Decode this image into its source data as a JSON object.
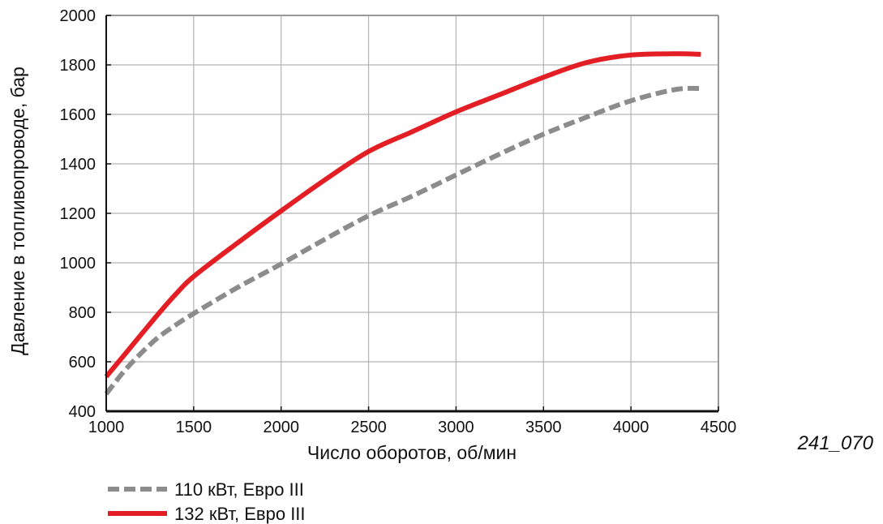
{
  "chart_data": {
    "type": "line",
    "xlabel": "Число оборотов, об/мин",
    "ylabel": "Давление в топливопроводе, бар",
    "xlim": [
      1000,
      4500
    ],
    "ylim": [
      400,
      2000
    ],
    "xticks": [
      1000,
      1500,
      2000,
      2500,
      3000,
      3500,
      4000,
      4500
    ],
    "yticks": [
      400,
      600,
      800,
      1000,
      1200,
      1400,
      1600,
      1800,
      2000
    ],
    "grid": true,
    "legend_position": "bottom-left",
    "series": [
      {
        "name": "110 кВт, Евро III",
        "color": "#8c8c8c",
        "style": "dashed",
        "x": [
          1000,
          1100,
          1200,
          1300,
          1400,
          1500,
          1750,
          2000,
          2250,
          2500,
          2750,
          3000,
          3250,
          3500,
          3750,
          4000,
          4250,
          4400
        ],
        "y": [
          470,
          560,
          635,
          700,
          750,
          795,
          900,
          995,
          1095,
          1190,
          1270,
          1355,
          1440,
          1520,
          1590,
          1655,
          1700,
          1705
        ]
      },
      {
        "name": "132 кВт, Евро III",
        "color": "#e31e24",
        "style": "solid",
        "x": [
          1000,
          1100,
          1200,
          1300,
          1400,
          1500,
          1750,
          2000,
          2250,
          2500,
          2750,
          3000,
          3250,
          3500,
          3750,
          4000,
          4250,
          4400
        ],
        "y": [
          540,
          625,
          710,
          795,
          875,
          945,
          1080,
          1210,
          1335,
          1450,
          1530,
          1610,
          1680,
          1750,
          1810,
          1840,
          1845,
          1843
        ]
      }
    ]
  },
  "figure_id": "241_070"
}
